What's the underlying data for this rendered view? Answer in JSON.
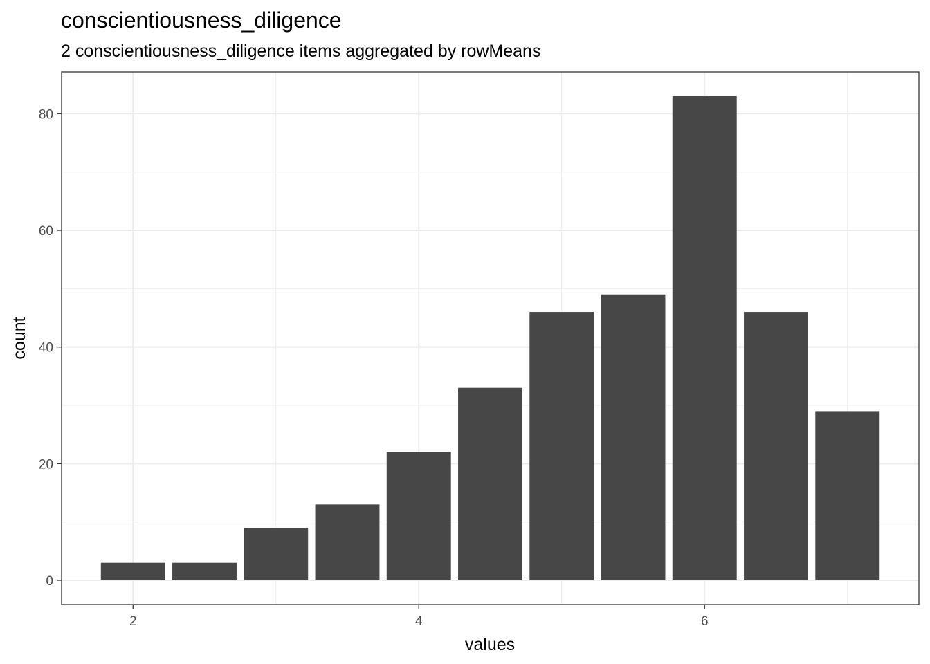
{
  "chart_data": {
    "type": "bar",
    "title": "conscientiousness_diligence",
    "subtitle": "2 conscientiousness_diligence items aggregated by rowMeans",
    "xlabel": "values",
    "ylabel": "count",
    "x": [
      2,
      2.5,
      3,
      3.5,
      4,
      4.5,
      5,
      5.5,
      6,
      6.5,
      7
    ],
    "values": [
      3,
      3,
      9,
      13,
      22,
      33,
      46,
      49,
      83,
      46,
      29
    ],
    "bar_width": 0.45,
    "xlim": [
      1.5,
      7.5
    ],
    "ylim": [
      -4.15,
      87.15
    ],
    "x_ticks": [
      2,
      4,
      6
    ],
    "y_ticks": [
      0,
      20,
      40,
      60,
      80
    ],
    "bar_color": "#474747",
    "grid": true,
    "grid_color": "#ebebeb",
    "panel_border_color": "#333333"
  }
}
